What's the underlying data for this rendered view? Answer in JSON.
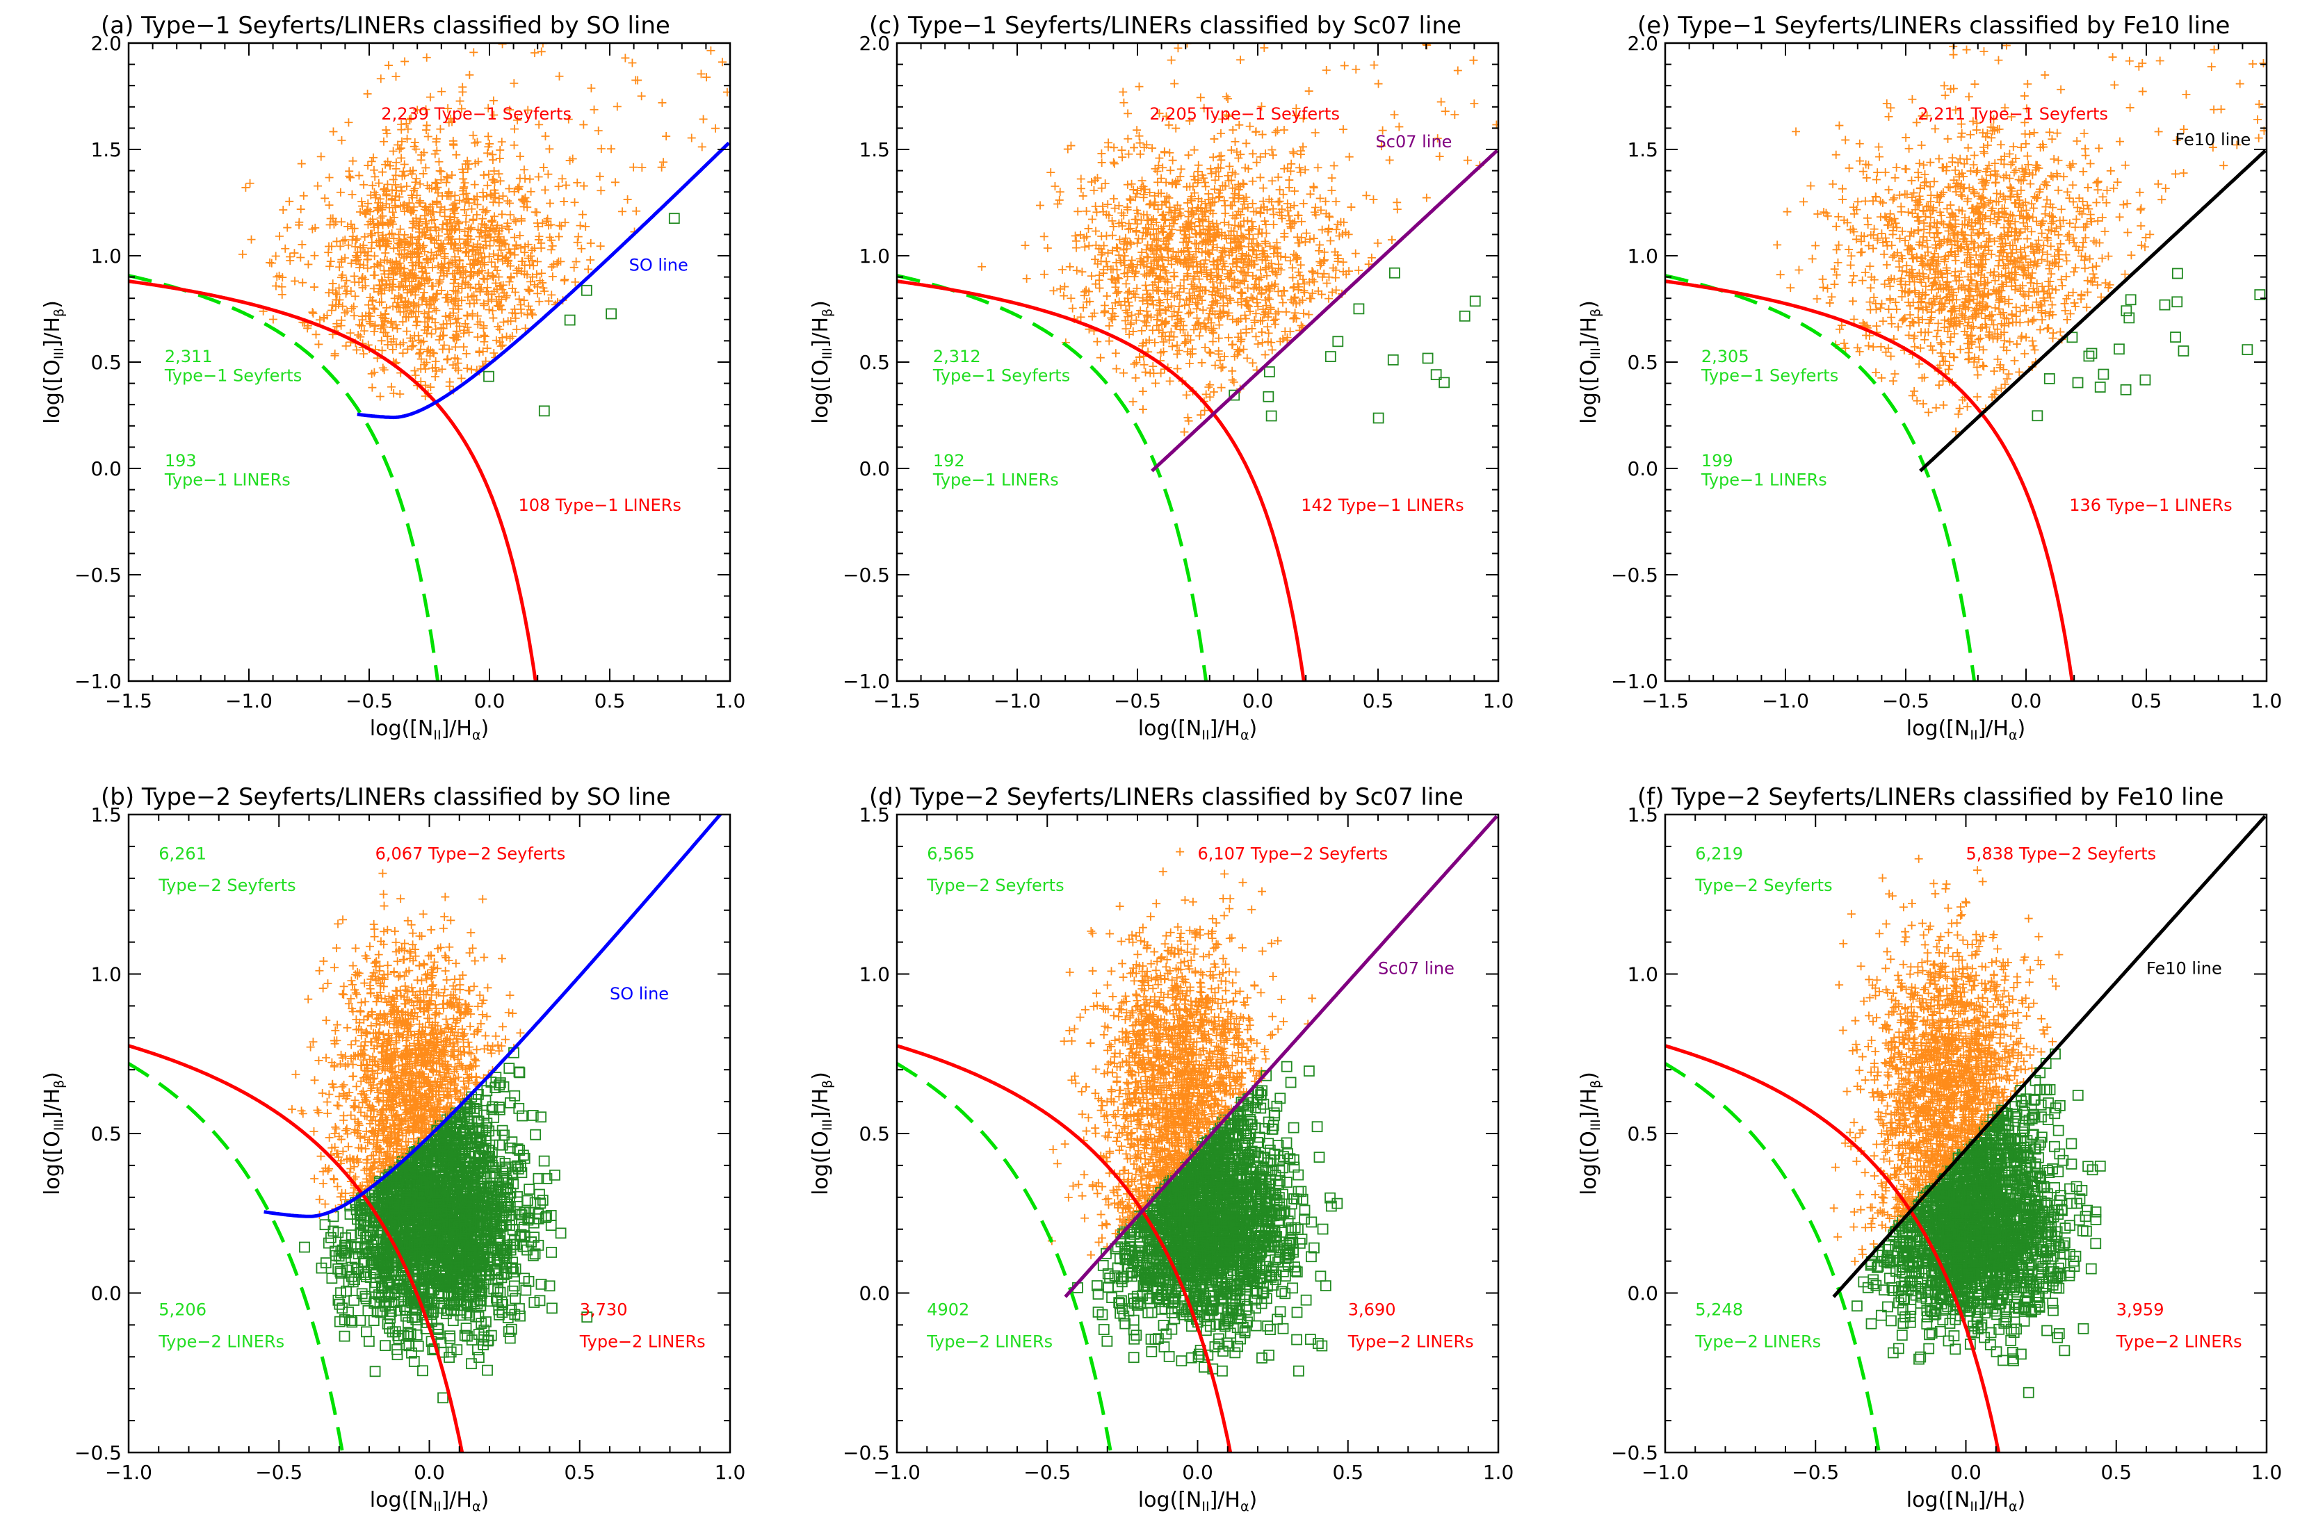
{
  "figure": {
    "y_axis_label": "log([O_III]/H_β)",
    "x_axis_label": "log([N_II]/H_α)",
    "colors": {
      "seyfert_marker": "#ff8c1a",
      "liner_marker": "#228b22",
      "kauffmann_curve": "#00e000",
      "kewley_curve": "#ff0000",
      "so_line": "#0000ff",
      "sc07_line": "#800080",
      "fe10_line": "#000000",
      "count_green": "#22dd22",
      "count_red": "#ff0000"
    }
  },
  "chart_data": [
    {
      "id": "a",
      "type": "scatter",
      "title": "(a) Type−1 Seyferts/LINERs classified by SO line",
      "xlabel": "log([N_II]/H_α)",
      "ylabel": "log([O_III]/H_β)",
      "xlim": [
        -1.5,
        1.0
      ],
      "ylim": [
        -1.0,
        2.0
      ],
      "xticks": [
        -1.5,
        -1.0,
        -0.5,
        0.0,
        0.5,
        1.0
      ],
      "xtick_labels": [
        "−1.5",
        "−1.0",
        "−0.5",
        "0.0",
        "0.5",
        "1.0"
      ],
      "yticks": [
        -1.0,
        -0.5,
        0.0,
        0.5,
        1.0,
        1.5,
        2.0
      ],
      "ytick_labels": [
        "−1.0",
        "−0.5",
        "0.0",
        "0.5",
        "1.0",
        "1.5",
        "2.0"
      ],
      "divider": "SO",
      "divider_label": "SO line",
      "divider_label_at": [
        0.58,
        0.93
      ],
      "series": [
        {
          "name": "Type-1 Seyferts (above dividing line)",
          "marker": "plus",
          "approx_count": 2239
        },
        {
          "name": "Type-1 LINERs (below dividing line)",
          "marker": "square",
          "approx_count": 108
        }
      ],
      "annotations": [
        {
          "text": "2,239 Type−1 Seyferts",
          "x": -0.45,
          "y": 1.64,
          "color": "red"
        },
        {
          "text": "2,311",
          "x": -1.35,
          "y": 0.5,
          "color": "green"
        },
        {
          "text": "Type−1 Seyferts",
          "x": -1.35,
          "y": 0.41,
          "color": "green"
        },
        {
          "text": "193",
          "x": -1.35,
          "y": 0.01,
          "color": "green"
        },
        {
          "text": "Type−1 LINERs",
          "x": -1.35,
          "y": -0.08,
          "color": "green"
        },
        {
          "text": "108 Type−1 LINERs",
          "x": 0.12,
          "y": -0.2,
          "color": "red"
        }
      ]
    },
    {
      "id": "c",
      "type": "scatter",
      "title": "(c) Type−1 Seyferts/LINERs classified by Sc07 line",
      "xlabel": "log([N_II]/H_α)",
      "ylabel": "log([O_III]/H_β)",
      "xlim": [
        -1.5,
        1.0
      ],
      "ylim": [
        -1.0,
        2.0
      ],
      "xticks": [
        -1.5,
        -1.0,
        -0.5,
        0.0,
        0.5,
        1.0
      ],
      "xtick_labels": [
        "−1.5",
        "−1.0",
        "−0.5",
        "0.0",
        "0.5",
        "1.0"
      ],
      "yticks": [
        -1.0,
        -0.5,
        0.0,
        0.5,
        1.0,
        1.5,
        2.0
      ],
      "ytick_labels": [
        "−1.0",
        "−0.5",
        "0.0",
        "0.5",
        "1.0",
        "1.5",
        "2.0"
      ],
      "divider": "Sc07",
      "divider_label": "Sc07 line",
      "divider_label_at": [
        0.49,
        1.51
      ],
      "series": [
        {
          "name": "Type-1 Seyferts (above dividing line)",
          "marker": "plus",
          "approx_count": 2205
        },
        {
          "name": "Type-1 LINERs (below dividing line)",
          "marker": "square",
          "approx_count": 142
        }
      ],
      "annotations": [
        {
          "text": "2,205 Type−1 Seyferts",
          "x": -0.45,
          "y": 1.64,
          "color": "red"
        },
        {
          "text": "2,312",
          "x": -1.35,
          "y": 0.5,
          "color": "green"
        },
        {
          "text": "Type−1 Seyferts",
          "x": -1.35,
          "y": 0.41,
          "color": "green"
        },
        {
          "text": "192",
          "x": -1.35,
          "y": 0.01,
          "color": "green"
        },
        {
          "text": "Type−1 LINERs",
          "x": -1.35,
          "y": -0.08,
          "color": "green"
        },
        {
          "text": "142 Type−1 LINERs",
          "x": 0.18,
          "y": -0.2,
          "color": "red"
        }
      ]
    },
    {
      "id": "e",
      "type": "scatter",
      "title": "(e) Type−1 Seyferts/LINERs classified by Fe10 line",
      "xlabel": "log([N_II]/H_α)",
      "ylabel": "log([O_III]/H_β)",
      "xlim": [
        -1.5,
        1.0
      ],
      "ylim": [
        -1.0,
        2.0
      ],
      "xticks": [
        -1.5,
        -1.0,
        -0.5,
        0.0,
        0.5,
        1.0
      ],
      "xtick_labels": [
        "−1.5",
        "−1.0",
        "−0.5",
        "0.0",
        "0.5",
        "1.0"
      ],
      "yticks": [
        -1.0,
        -0.5,
        0.0,
        0.5,
        1.0,
        1.5,
        2.0
      ],
      "ytick_labels": [
        "−1.0",
        "−0.5",
        "0.0",
        "0.5",
        "1.0",
        "1.5",
        "2.0"
      ],
      "divider": "Fe10",
      "divider_label": "Fe10 line",
      "divider_label_at": [
        0.62,
        1.52
      ],
      "series": [
        {
          "name": "Type-1 Seyferts (above dividing line)",
          "marker": "plus",
          "approx_count": 2211
        },
        {
          "name": "Type-1 LINERs (below dividing line)",
          "marker": "square",
          "approx_count": 136
        }
      ],
      "annotations": [
        {
          "text": "2,211 Type−1 Seyferts",
          "x": -0.45,
          "y": 1.64,
          "color": "red"
        },
        {
          "text": "2,305",
          "x": -1.35,
          "y": 0.5,
          "color": "green"
        },
        {
          "text": "Type−1 Seyferts",
          "x": -1.35,
          "y": 0.41,
          "color": "green"
        },
        {
          "text": "199",
          "x": -1.35,
          "y": 0.01,
          "color": "green"
        },
        {
          "text": "Type−1 LINERs",
          "x": -1.35,
          "y": -0.08,
          "color": "green"
        },
        {
          "text": "136 Type−1 LINERs",
          "x": 0.18,
          "y": -0.2,
          "color": "red"
        }
      ]
    },
    {
      "id": "b",
      "type": "scatter",
      "title": "(b) Type−2 Seyferts/LINERs classified by SO line",
      "xlabel": "log([N_II]/H_α)",
      "ylabel": "log([O_III]/H_β)",
      "xlim": [
        -1.0,
        1.0
      ],
      "ylim": [
        -0.5,
        1.5
      ],
      "xticks": [
        -1.0,
        -0.5,
        0.0,
        0.5,
        1.0
      ],
      "xtick_labels": [
        "−1.0",
        "−0.5",
        "0.0",
        "0.5",
        "1.0"
      ],
      "yticks": [
        -0.5,
        0.0,
        0.5,
        1.0,
        1.5
      ],
      "ytick_labels": [
        "−0.5",
        "0.0",
        "0.5",
        "1.0",
        "1.5"
      ],
      "divider": "SO",
      "divider_label": "SO line",
      "divider_label_at": [
        0.6,
        0.92
      ],
      "series": [
        {
          "name": "Type-2 Seyferts (above dividing line)",
          "marker": "plus",
          "approx_count": 6067
        },
        {
          "name": "Type-2 LINERs (below dividing line)",
          "marker": "square",
          "approx_count": 3730
        }
      ],
      "annotations": [
        {
          "text": "6,261",
          "x": -0.9,
          "y": 1.36,
          "color": "green"
        },
        {
          "text": "Type−2 Seyferts",
          "x": -0.9,
          "y": 1.26,
          "color": "green"
        },
        {
          "text": "6,067 Type−2 Seyferts",
          "x": -0.18,
          "y": 1.36,
          "color": "red"
        },
        {
          "text": "5,206",
          "x": -0.9,
          "y": -0.07,
          "color": "green"
        },
        {
          "text": "Type−2 LINERs",
          "x": -0.9,
          "y": -0.17,
          "color": "green"
        },
        {
          "text": "3,730",
          "x": 0.5,
          "y": -0.07,
          "color": "red"
        },
        {
          "text": "Type−2 LINERs",
          "x": 0.5,
          "y": -0.17,
          "color": "red"
        }
      ]
    },
    {
      "id": "d",
      "type": "scatter",
      "title": "(d) Type−2 Seyferts/LINERs classified by Sc07 line",
      "xlabel": "log([N_II]/H_α)",
      "ylabel": "log([O_III]/H_β)",
      "xlim": [
        -1.0,
        1.0
      ],
      "ylim": [
        -0.5,
        1.5
      ],
      "xticks": [
        -1.0,
        -0.5,
        0.0,
        0.5,
        1.0
      ],
      "xtick_labels": [
        "−1.0",
        "−0.5",
        "0.0",
        "0.5",
        "1.0"
      ],
      "yticks": [
        -0.5,
        0.0,
        0.5,
        1.0,
        1.5
      ],
      "ytick_labels": [
        "−0.5",
        "0.0",
        "0.5",
        "1.0",
        "1.5"
      ],
      "divider": "Sc07",
      "divider_label": "Sc07 line",
      "divider_label_at": [
        0.6,
        1.0
      ],
      "series": [
        {
          "name": "Type-2 Seyferts (above dividing line)",
          "marker": "plus",
          "approx_count": 6107
        },
        {
          "name": "Type-2 LINERs (below dividing line)",
          "marker": "square",
          "approx_count": 3690
        }
      ],
      "annotations": [
        {
          "text": "6,565",
          "x": -0.9,
          "y": 1.36,
          "color": "green"
        },
        {
          "text": "Type−2 Seyferts",
          "x": -0.9,
          "y": 1.26,
          "color": "green"
        },
        {
          "text": "6,107 Type−2 Seyferts",
          "x": 0.0,
          "y": 1.36,
          "color": "red"
        },
        {
          "text": "4902",
          "x": -0.9,
          "y": -0.07,
          "color": "green"
        },
        {
          "text": "Type−2 LINERs",
          "x": -0.9,
          "y": -0.17,
          "color": "green"
        },
        {
          "text": "3,690",
          "x": 0.5,
          "y": -0.07,
          "color": "red"
        },
        {
          "text": "Type−2 LINERs",
          "x": 0.5,
          "y": -0.17,
          "color": "red"
        }
      ]
    },
    {
      "id": "f",
      "type": "scatter",
      "title": "(f) Type−2 Seyferts/LINERs classified by Fe10 line",
      "xlabel": "log([N_II]/H_α)",
      "ylabel": "log([O_III]/H_β)",
      "xlim": [
        -1.0,
        1.0
      ],
      "ylim": [
        -0.5,
        1.5
      ],
      "xticks": [
        -1.0,
        -0.5,
        0.0,
        0.5,
        1.0
      ],
      "xtick_labels": [
        "−1.0",
        "−0.5",
        "0.0",
        "0.5",
        "1.0"
      ],
      "yticks": [
        -0.5,
        0.0,
        0.5,
        1.0,
        1.5
      ],
      "ytick_labels": [
        "−0.5",
        "0.0",
        "0.5",
        "1.0",
        "1.5"
      ],
      "divider": "Fe10",
      "divider_label": "Fe10 line",
      "divider_label_at": [
        0.6,
        1.0
      ],
      "series": [
        {
          "name": "Type-2 Seyferts (above dividing line)",
          "marker": "plus",
          "approx_count": 5838
        },
        {
          "name": "Type-2 LINERs (below dividing line)",
          "marker": "square",
          "approx_count": 3959
        }
      ],
      "annotations": [
        {
          "text": "6,219",
          "x": -0.9,
          "y": 1.36,
          "color": "green"
        },
        {
          "text": "Type−2 Seyferts",
          "x": -0.9,
          "y": 1.26,
          "color": "green"
        },
        {
          "text": "5,838 Type−2 Seyferts",
          "x": 0.0,
          "y": 1.36,
          "color": "red"
        },
        {
          "text": "5,248",
          "x": -0.9,
          "y": -0.07,
          "color": "green"
        },
        {
          "text": "Type−2 LINERs",
          "x": -0.9,
          "y": -0.17,
          "color": "green"
        },
        {
          "text": "3,959",
          "x": 0.5,
          "y": -0.07,
          "color": "red"
        },
        {
          "text": "Type−2 LINERs",
          "x": 0.5,
          "y": -0.17,
          "color": "red"
        }
      ]
    }
  ]
}
